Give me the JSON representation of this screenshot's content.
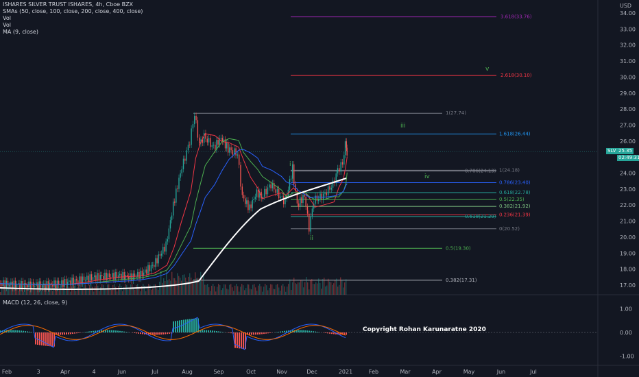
{
  "header": {
    "title": "ISHARES SILVER TRUST ISHARES, 4h, Cboe BZX",
    "smas": "SMAs (50, close, 100, close, 200, close, 400, close)",
    "vol1": "Vol",
    "vol2": "Vol",
    "ma": "MA (9, close)"
  },
  "currency": "USD",
  "price_tag": {
    "symbol": "SLV",
    "price": "25.35",
    "countdown": "02:49:31"
  },
  "macd_label": "MACD (12, 26, close, 9)",
  "copyright": "Copyright Rohan Karunaratne 2020",
  "colors": {
    "bg": "#131722",
    "up": "#26a69a",
    "down": "#ef5350",
    "sma_white": "#ffffff",
    "sma_red": "#f23645",
    "sma_green": "#4caf50",
    "sma_blue": "#2962ff",
    "macd": "#2962ff",
    "signal": "#ff6d00"
  },
  "chart_data": {
    "type": "candlestick",
    "x_ticks": [
      "Feb",
      "3",
      "Apr",
      "4",
      "Jun",
      "Jul",
      "Aug",
      "Sep",
      "Oct",
      "Nov",
      "Dec",
      "2021",
      "Feb",
      "Mar",
      "Apr",
      "May",
      "Jun",
      "Jul"
    ],
    "y_ticks": [
      34.0,
      33.0,
      32.0,
      31.0,
      30.0,
      29.0,
      28.0,
      27.0,
      26.0,
      25.0,
      24.0,
      23.0,
      22.0,
      21.0,
      20.0,
      19.0,
      18.0,
      17.0
    ],
    "macd_ticks": [
      1.0,
      0.0,
      -1.0
    ],
    "last_price": 25.35,
    "price_path": [
      [
        0,
        17.1
      ],
      [
        0.5,
        17.05
      ],
      [
        1,
        17.0
      ],
      [
        1.5,
        17.0
      ],
      [
        2,
        17.0
      ],
      [
        2.5,
        17.1
      ],
      [
        3,
        17.2
      ],
      [
        3.5,
        17.35
      ],
      [
        4,
        17.5
      ],
      [
        4.5,
        17.55
      ],
      [
        5,
        17.6
      ],
      [
        5.5,
        17.5
      ],
      [
        6,
        17.7
      ],
      [
        6.5,
        18.3
      ],
      [
        7,
        19.5
      ],
      [
        7.3,
        22.0
      ],
      [
        7.6,
        24.0
      ],
      [
        8.0,
        26.0
      ],
      [
        8.2,
        27.7
      ],
      [
        8.4,
        25.8
      ],
      [
        8.6,
        26.3
      ],
      [
        9.0,
        25.6
      ],
      [
        9.3,
        26.2
      ],
      [
        9.6,
        25.5
      ],
      [
        10.0,
        25.2
      ],
      [
        10.2,
        22.5
      ],
      [
        10.5,
        21.8
      ],
      [
        10.8,
        22.8
      ],
      [
        11.0,
        22.5
      ],
      [
        11.4,
        23.3
      ],
      [
        11.8,
        22.5
      ],
      [
        12.0,
        22.2
      ],
      [
        12.3,
        24.3
      ],
      [
        12.5,
        22.0
      ],
      [
        12.8,
        22.6
      ],
      [
        13.0,
        20.6
      ],
      [
        13.2,
        22.3
      ],
      [
        13.6,
        22.6
      ],
      [
        14.0,
        23.3
      ],
      [
        14.2,
        24.2
      ],
      [
        14.4,
        24.6
      ],
      [
        14.5,
        25.9
      ],
      [
        14.55,
        25.35
      ]
    ],
    "fib_lines": [
      {
        "label": "3.618(33.76)",
        "value": 33.76,
        "color": "#9c27b0"
      },
      {
        "label": "2.618(30.10)",
        "value": 30.1,
        "color": "#f23645"
      },
      {
        "label": "1(27.74)",
        "value": 27.74,
        "color": "#787b86"
      },
      {
        "label": "1.618(26.44)",
        "value": 26.44,
        "color": "#2196f3"
      },
      {
        "label": "0.786(24.13)",
        "value": 24.13,
        "color": "#787b86"
      },
      {
        "label": "1(24.18)",
        "value": 24.18,
        "color": "#787b86"
      },
      {
        "label": "0.786(23.40)",
        "value": 23.4,
        "color": "#2962ff"
      },
      {
        "label": "0.618(22.78)",
        "value": 22.78,
        "color": "#26a69a"
      },
      {
        "label": "0.5(22.35)",
        "value": 22.35,
        "color": "#4caf50"
      },
      {
        "label": "0.382(21.92)",
        "value": 21.92,
        "color": "#81c784"
      },
      {
        "label": "0.236(21.39)",
        "value": 21.39,
        "color": "#f23645"
      },
      {
        "label": "0.618(21.29)",
        "value": 21.29,
        "color": "#26a69a"
      },
      {
        "label": "0(20.52)",
        "value": 20.52,
        "color": "#787b86"
      },
      {
        "label": "0.5(19.30)",
        "value": 19.3,
        "color": "#4caf50"
      },
      {
        "label": "0.382(17.31)",
        "value": 17.31,
        "color": "#b2b5be"
      }
    ],
    "wave_labels": [
      {
        "label": "v",
        "color": "#4caf50"
      },
      {
        "label": "iii",
        "color": "#4caf50"
      },
      {
        "label": "i",
        "color": "#4caf50"
      },
      {
        "label": "iv",
        "color": "#4caf50"
      },
      {
        "label": "ii",
        "color": "#4caf50"
      }
    ]
  }
}
